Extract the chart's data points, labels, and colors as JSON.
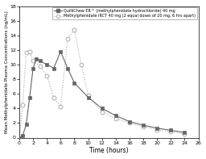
{
  "quillichew_x": [
    0,
    0.5,
    1,
    1.5,
    2,
    2.5,
    3,
    4,
    5,
    6,
    7,
    8,
    10,
    12,
    14,
    16,
    18,
    20,
    22,
    24
  ],
  "quillichew_y": [
    0,
    0.3,
    1.8,
    5.5,
    9.5,
    10.8,
    10.5,
    10.0,
    9.5,
    11.8,
    9.5,
    7.5,
    5.5,
    4.0,
    3.0,
    2.2,
    1.7,
    1.3,
    1.0,
    0.7
  ],
  "irct_x": [
    0,
    0.5,
    1,
    1.5,
    2,
    3,
    4,
    5,
    6,
    7,
    8,
    9,
    10,
    12,
    14,
    16,
    18,
    20,
    22,
    24
  ],
  "irct_y": [
    0,
    4.5,
    11.7,
    11.8,
    10.5,
    9.8,
    8.5,
    5.5,
    4.2,
    13.5,
    14.8,
    10.0,
    5.8,
    3.5,
    2.6,
    2.0,
    1.5,
    1.1,
    0.8,
    0.5
  ],
  "quillichew_color": "#666666",
  "irct_color": "#aaaaaa",
  "xlabel": "Time (hours)",
  "ylabel": "Mean Methylphenidate Plasma Concentrations (ng/mL)",
  "xlim": [
    0,
    26
  ],
  "ylim": [
    0,
    18
  ],
  "xticks": [
    0,
    2,
    4,
    6,
    8,
    10,
    12,
    14,
    16,
    18,
    20,
    22,
    24,
    26
  ],
  "yticks": [
    0,
    2,
    4,
    6,
    8,
    10,
    12,
    14,
    16,
    18
  ],
  "legend_quillichew": "QuilliChew ER™ (methylphenidate hydrochloride) 40 mg",
  "legend_irct": "Methylphenidate IRCT 40 mg (2 equal doses of 20 mg, 6 hrs apart)"
}
